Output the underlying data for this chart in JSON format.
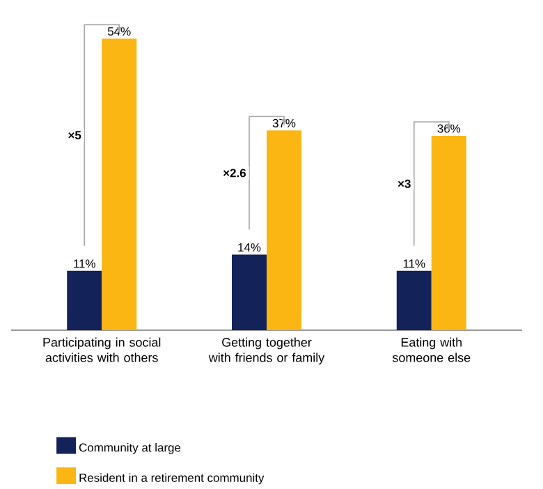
{
  "chart_data": {
    "type": "bar",
    "categories": [
      "Participating in social activities with others",
      "Getting together with friends or family",
      "Eating with someone else"
    ],
    "series": [
      {
        "name": "Community at large",
        "color": "#14225a",
        "values": [
          11,
          14,
          11
        ],
        "value_labels": [
          "11%",
          "14%",
          "11%"
        ]
      },
      {
        "name": "Resident in a retirement community",
        "color": "#fbb614",
        "values": [
          54,
          37,
          36
        ],
        "value_labels": [
          "54%",
          "37%",
          "36%"
        ]
      }
    ],
    "annotations": [
      "×5",
      "×2.6",
      "×3"
    ],
    "legend": "bottom"
  }
}
